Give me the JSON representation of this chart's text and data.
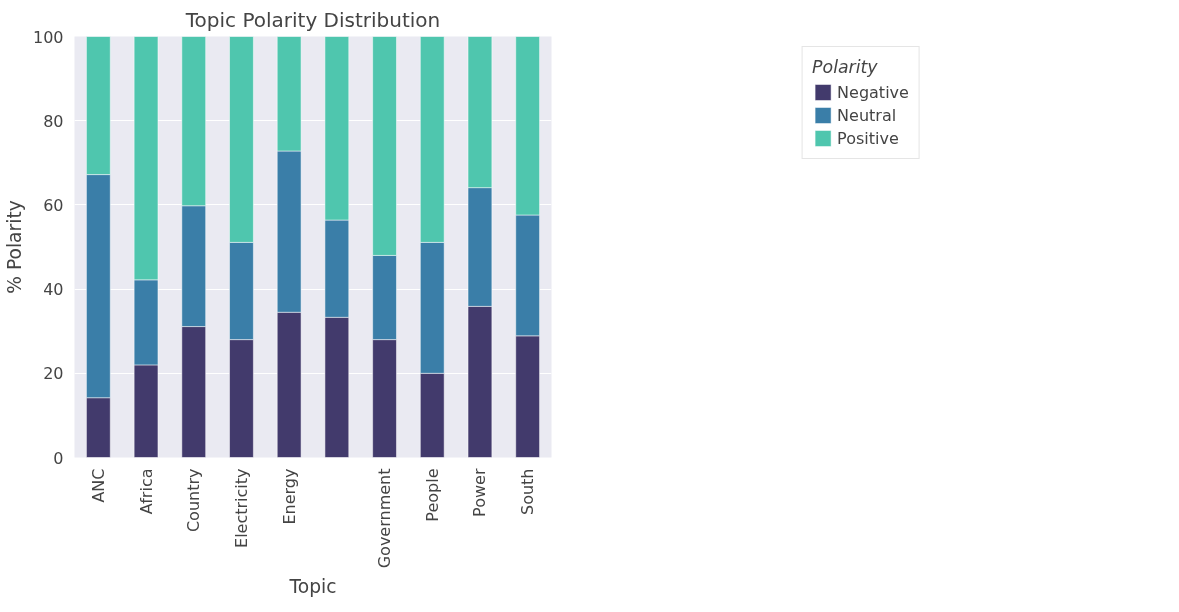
{
  "chart_data": {
    "type": "bar",
    "title": "Topic Polarity Distribution",
    "xlabel": "Topic",
    "ylabel": "% Polarity",
    "legend_title": "Polarity",
    "categories": [
      "ANC",
      "Africa",
      "Country",
      "Electricity",
      "Energy",
      null,
      "Government",
      "People",
      "Power",
      "South"
    ],
    "series": [
      {
        "name": "Negative",
        "color": "#423a6c",
        "values": [
          14.2,
          22,
          31.1,
          28,
          34.5,
          33.3,
          28,
          20,
          35.9,
          28.9
        ]
      },
      {
        "name": "Neutral",
        "color": "#3a7ea8",
        "values": [
          53,
          20.2,
          28.7,
          23.1,
          38.3,
          23.1,
          20,
          31.1,
          28.2,
          28.7
        ]
      },
      {
        "name": "Positive",
        "color": "#4fc6ae",
        "values": [
          32.8,
          57.8,
          40.2,
          48.9,
          27.2,
          43.6,
          52,
          48.9,
          35.9,
          42.4
        ]
      }
    ],
    "stacked": true,
    "ylim": [
      0,
      100
    ],
    "yticks": [
      0,
      20,
      40,
      60,
      80,
      100
    ],
    "grid": "y",
    "legend": "top right"
  }
}
